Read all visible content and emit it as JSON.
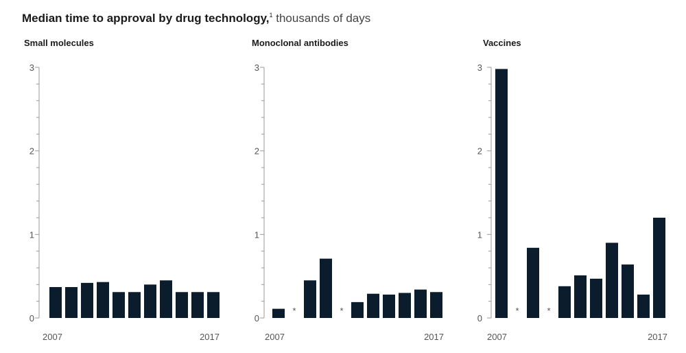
{
  "title": {
    "main": "Median time to approval by drug technology,",
    "footnote": "1",
    "unit": "thousands of days"
  },
  "chart_data": [
    {
      "type": "bar",
      "title": "Small molecules",
      "categories": [
        "2007",
        "2008",
        "2009",
        "2010",
        "2011",
        "2012",
        "2013",
        "2014",
        "2015",
        "2016",
        "2017"
      ],
      "values": [
        0.37,
        0.37,
        0.42,
        0.43,
        0.31,
        0.31,
        0.4,
        0.45,
        0.31,
        0.31,
        0.31
      ],
      "ylim": [
        0,
        3
      ],
      "yticks": [
        "0",
        "1",
        "2",
        "3"
      ],
      "xtick_labels": {
        "first": "2007",
        "last": "2017"
      }
    },
    {
      "type": "bar",
      "title": "Monoclonal antibodies",
      "categories": [
        "2007",
        "2008",
        "2009",
        "2010",
        "2011",
        "2012",
        "2013",
        "2014",
        "2015",
        "2016",
        "2017"
      ],
      "values": [
        0.11,
        null,
        0.45,
        0.71,
        null,
        0.19,
        0.29,
        0.28,
        0.3,
        0.34,
        0.31
      ],
      "missing_marker": "*",
      "ylim": [
        0,
        3
      ],
      "yticks": [
        "0",
        "1",
        "2",
        "3"
      ],
      "xtick_labels": {
        "first": "2007",
        "last": "2017"
      }
    },
    {
      "type": "bar",
      "title": "Vaccines",
      "categories": [
        "2007",
        "2008",
        "2009",
        "2010",
        "2011",
        "2012",
        "2013",
        "2014",
        "2015",
        "2016",
        "2017"
      ],
      "values": [
        2.98,
        null,
        0.84,
        null,
        0.38,
        0.51,
        0.47,
        0.9,
        0.64,
        0.28,
        1.2
      ],
      "missing_marker": "*",
      "ylim": [
        0,
        3
      ],
      "yticks": [
        "0",
        "1",
        "2",
        "3"
      ],
      "xtick_labels": {
        "first": "2007",
        "last": "2017"
      }
    }
  ],
  "colors": {
    "bar": "#0b1c2c",
    "axis": "#9a9a9a",
    "text": "#1a1a1a",
    "tick_text": "#555555"
  }
}
